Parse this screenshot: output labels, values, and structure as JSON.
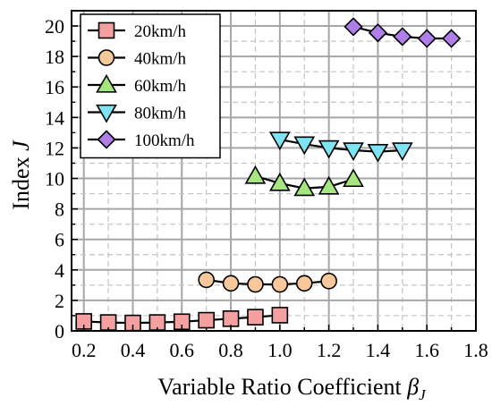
{
  "chart_data": {
    "type": "line",
    "xlabel": "Variable Ratio Coefficient",
    "xlabel_symbol": "β",
    "xlabel_subscript": "J",
    "ylabel": "Index",
    "ylabel_symbol": "J",
    "xlim": [
      0.15,
      1.8
    ],
    "ylim": [
      0,
      21
    ],
    "x_ticks": [
      "0.2",
      "0.4",
      "0.6",
      "0.8",
      "1.0",
      "1.2",
      "1.4",
      "1.6",
      "1.8"
    ],
    "y_ticks": [
      "0",
      "2",
      "4",
      "6",
      "8",
      "10",
      "12",
      "14",
      "16",
      "18",
      "20"
    ],
    "grid": true,
    "legend_position": "top-left",
    "series": [
      {
        "name": "20km/h",
        "marker": "square",
        "color": "#f4a0a0",
        "x": [
          0.2,
          0.3,
          0.4,
          0.5,
          0.6,
          0.7,
          0.8,
          0.9,
          1.0
        ],
        "y": [
          0.62,
          0.55,
          0.52,
          0.55,
          0.6,
          0.7,
          0.8,
          0.9,
          1.03
        ]
      },
      {
        "name": "40km/h",
        "marker": "circle",
        "color": "#f8c89a",
        "x": [
          0.7,
          0.8,
          0.9,
          1.0,
          1.1,
          1.2
        ],
        "y": [
          3.35,
          3.12,
          3.05,
          3.05,
          3.12,
          3.27
        ]
      },
      {
        "name": "60km/h",
        "marker": "triangle-up",
        "color": "#a6e67f",
        "x": [
          0.9,
          1.0,
          1.1,
          1.2,
          1.3
        ],
        "y": [
          10.15,
          9.68,
          9.35,
          9.45,
          9.95
        ]
      },
      {
        "name": "80km/h",
        "marker": "triangle-down",
        "color": "#7ee4f4",
        "x": [
          1.0,
          1.1,
          1.2,
          1.3,
          1.4,
          1.5
        ],
        "y": [
          12.55,
          12.25,
          12.0,
          11.85,
          11.75,
          11.85
        ]
      },
      {
        "name": "100km/h",
        "marker": "diamond",
        "color": "#b07ee8",
        "x": [
          1.3,
          1.4,
          1.5,
          1.6,
          1.7
        ],
        "y": [
          19.95,
          19.55,
          19.3,
          19.18,
          19.18
        ]
      }
    ]
  }
}
